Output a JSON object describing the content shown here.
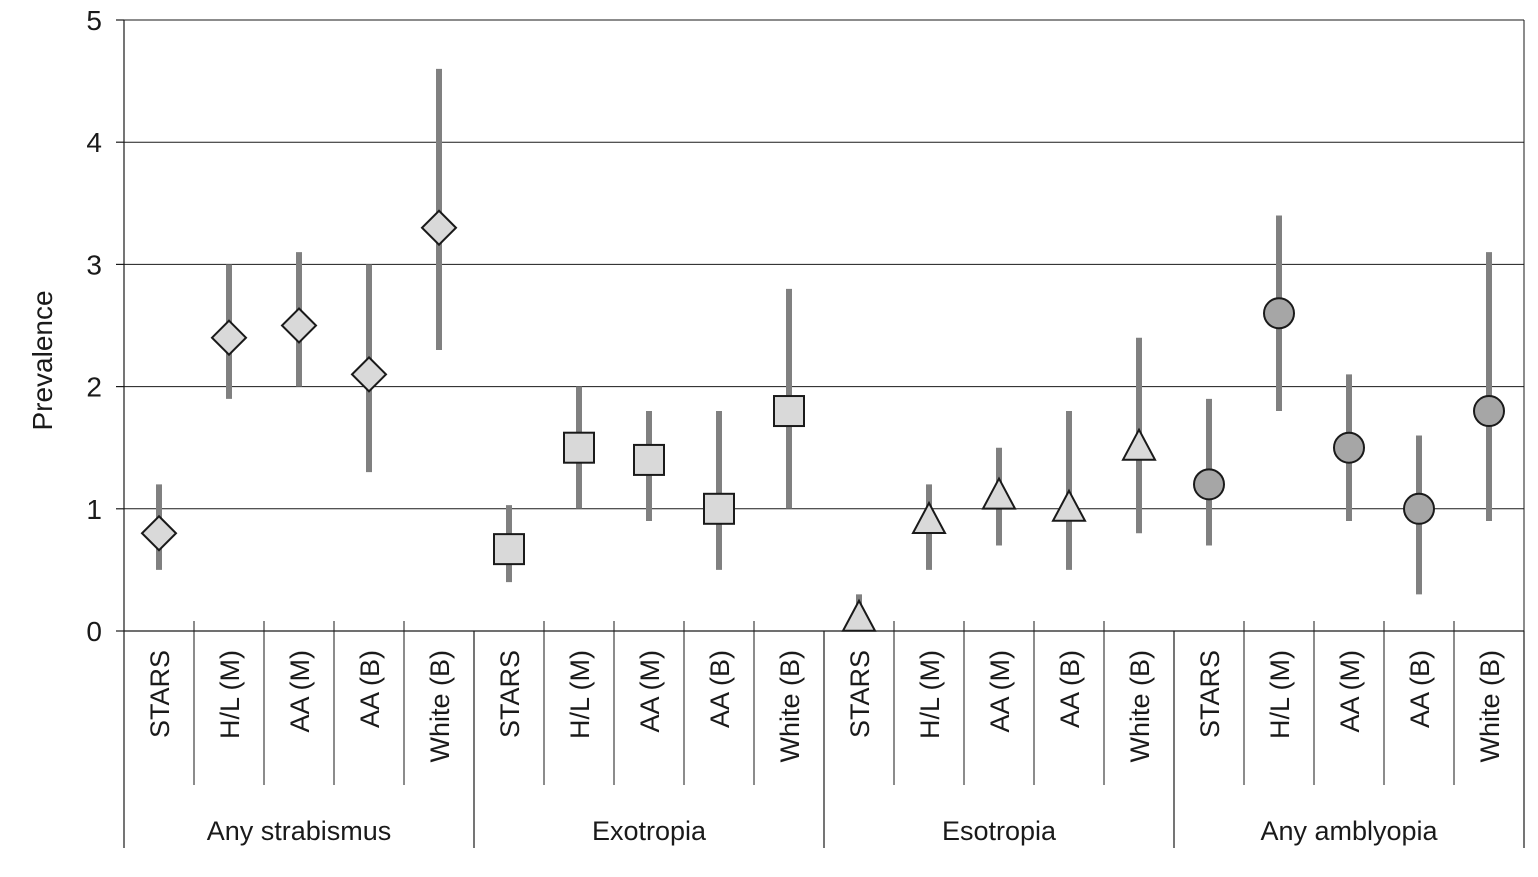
{
  "chart_data": {
    "type": "scatter",
    "ylabel": "Prevalence",
    "ylim": [
      0,
      5
    ],
    "yticks": [
      "0",
      "1",
      "2",
      "3",
      "4",
      "5"
    ],
    "grid": true,
    "categories": [
      "STARS",
      "H/L (M)",
      "AA (M)",
      "AA (B)",
      "White (B)"
    ],
    "groups": [
      {
        "name": "Any strabismus",
        "marker": "diamond",
        "color": "#d9d9d9",
        "points": [
          {
            "category": "STARS",
            "value": 0.8,
            "low": 0.5,
            "high": 1.2
          },
          {
            "category": "H/L (M)",
            "value": 2.4,
            "low": 1.9,
            "high": 3.0
          },
          {
            "category": "AA (M)",
            "value": 2.5,
            "low": 2.0,
            "high": 3.1
          },
          {
            "category": "AA (B)",
            "value": 2.1,
            "low": 1.3,
            "high": 3.0
          },
          {
            "category": "White (B)",
            "value": 3.3,
            "low": 2.3,
            "high": 4.6
          }
        ]
      },
      {
        "name": "Exotropia",
        "marker": "square",
        "color": "#d9d9d9",
        "points": [
          {
            "category": "STARS",
            "value": 0.67,
            "low": 0.4,
            "high": 1.03
          },
          {
            "category": "H/L (M)",
            "value": 1.5,
            "low": 1.0,
            "high": 2.0
          },
          {
            "category": "AA (M)",
            "value": 1.4,
            "low": 0.9,
            "high": 1.8
          },
          {
            "category": "AA (B)",
            "value": 1.0,
            "low": 0.5,
            "high": 1.8
          },
          {
            "category": "White (B)",
            "value": 1.8,
            "low": 1.0,
            "high": 2.8
          }
        ]
      },
      {
        "name": "Esotropia",
        "marker": "triangle",
        "color": "#d9d9d9",
        "points": [
          {
            "category": "STARS",
            "value": 0.1,
            "low": 0.0,
            "high": 0.3
          },
          {
            "category": "H/L (M)",
            "value": 0.9,
            "low": 0.5,
            "high": 1.2
          },
          {
            "category": "AA (M)",
            "value": 1.1,
            "low": 0.7,
            "high": 1.5
          },
          {
            "category": "AA (B)",
            "value": 1.0,
            "low": 0.5,
            "high": 1.8
          },
          {
            "category": "White (B)",
            "value": 1.5,
            "low": 0.8,
            "high": 2.4
          }
        ]
      },
      {
        "name": "Any amblyopia",
        "marker": "circle",
        "color": "#a6a6a6",
        "points": [
          {
            "category": "STARS",
            "value": 1.2,
            "low": 0.7,
            "high": 1.9
          },
          {
            "category": "H/L (M)",
            "value": 2.6,
            "low": 1.8,
            "high": 3.4
          },
          {
            "category": "AA (M)",
            "value": 1.5,
            "low": 0.9,
            "high": 2.1
          },
          {
            "category": "AA (B)",
            "value": 1.0,
            "low": 0.3,
            "high": 1.6
          },
          {
            "category": "White (B)",
            "value": 1.8,
            "low": 0.9,
            "high": 3.1
          }
        ]
      }
    ],
    "colors": {
      "errorbar": "#808080",
      "gridline": "#1a1a1a",
      "marker_stroke": "#1a1a1a"
    }
  }
}
